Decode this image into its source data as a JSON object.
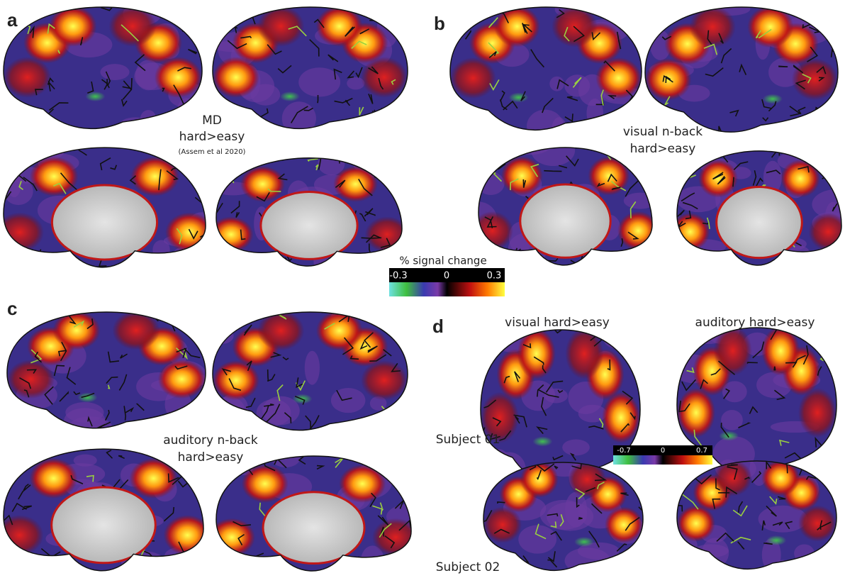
{
  "panels": [
    {
      "label": "a",
      "lines": [
        "MD",
        "hard>easy",
        "(Assem et al 2020)"
      ]
    },
    {
      "label": "b",
      "lines": [
        "visual n-back",
        "hard>easy"
      ]
    },
    {
      "label": "c",
      "lines": [
        "auditory n-back",
        "hard>easy"
      ]
    },
    {
      "label": "d",
      "columns": [
        "visual hard>easy",
        "auditory hard>easy"
      ],
      "rows": [
        "Subject 01",
        "Subject 02"
      ]
    }
  ],
  "colorbars": [
    {
      "title": "% signal change",
      "ticks": [
        -0.3,
        0,
        0.3
      ]
    },
    {
      "ticks": [
        -0.7,
        0,
        0.7
      ]
    }
  ]
}
